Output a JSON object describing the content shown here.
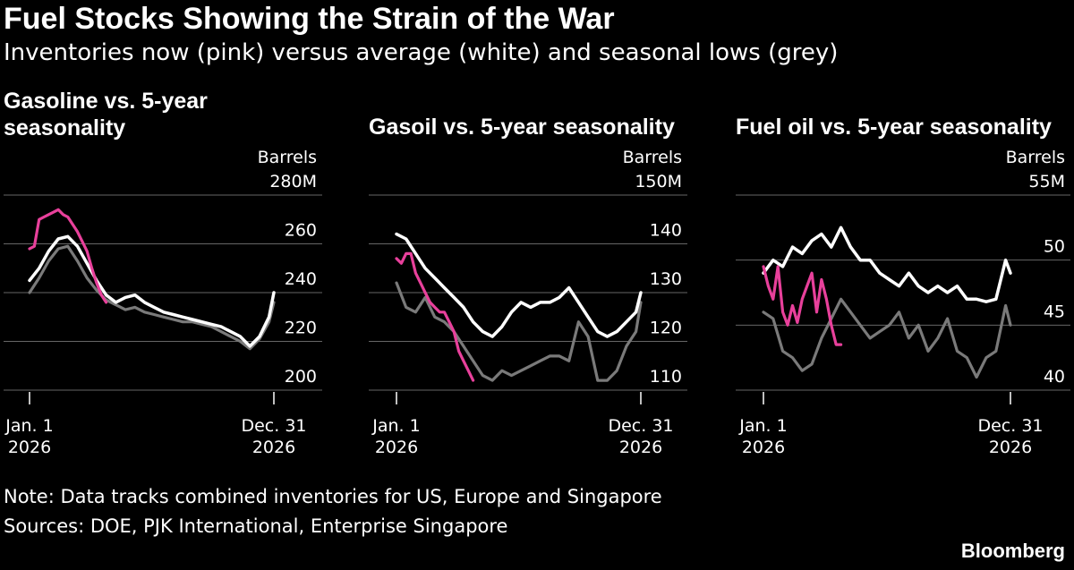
{
  "header": {
    "title": "Fuel Stocks Showing the Strain of the War",
    "subtitle": "Inventories now (pink) versus average (white) and seasonal lows (grey)"
  },
  "footer": {
    "note": "Note: Data tracks combined inventories for US, Europe and Singapore",
    "sources": "Sources: DOE, PJK International, Enterprise Singapore",
    "brand": "Bloomberg"
  },
  "colors": {
    "now": "#e8409b",
    "average": "#ffffff",
    "low": "#7a7a7a",
    "grid": "#666666",
    "background": "#000000"
  },
  "chart_data": [
    {
      "type": "line",
      "title": "Gasoline vs. 5-year seasonality",
      "ylabel": "Barrels",
      "ylim": [
        200,
        280
      ],
      "yticks": [
        200,
        220,
        240,
        260,
        280
      ],
      "ytick_labels": [
        "200",
        "220",
        "240",
        "260",
        "280M"
      ],
      "xlim": [
        1,
        52
      ],
      "xtick_labels": [
        [
          "Jan. 1",
          "2026"
        ],
        [
          "Dec. 31",
          "2026"
        ]
      ],
      "x_unit": "week of year",
      "series": [
        {
          "role": "now",
          "x": [
            1,
            2,
            3,
            4,
            5,
            6,
            7,
            8,
            9,
            10,
            11,
            12,
            13,
            14,
            15,
            16,
            17
          ],
          "values": [
            258,
            259,
            270,
            271,
            272,
            273,
            274,
            272,
            271,
            268,
            265,
            261,
            257,
            250,
            244,
            239,
            236
          ]
        },
        {
          "role": "average",
          "x": [
            1,
            3,
            5,
            7,
            9,
            11,
            13,
            15,
            17,
            19,
            21,
            23,
            25,
            27,
            29,
            31,
            33,
            35,
            37,
            39,
            41,
            43,
            45,
            47,
            49,
            51,
            52
          ],
          "values": [
            245,
            250,
            257,
            262,
            263,
            259,
            252,
            245,
            239,
            236,
            238,
            239,
            236,
            234,
            232,
            231,
            230,
            229,
            228,
            227,
            226,
            224,
            222,
            218,
            222,
            230,
            240
          ]
        },
        {
          "role": "low",
          "x": [
            1,
            3,
            5,
            7,
            9,
            11,
            13,
            15,
            17,
            19,
            21,
            23,
            25,
            27,
            29,
            31,
            33,
            35,
            37,
            39,
            41,
            43,
            45,
            47,
            49,
            51,
            52
          ],
          "values": [
            240,
            246,
            253,
            258,
            259,
            253,
            246,
            241,
            237,
            235,
            233,
            234,
            232,
            231,
            230,
            229,
            228,
            228,
            227,
            226,
            224,
            222,
            220,
            217,
            221,
            228,
            236
          ]
        }
      ]
    },
    {
      "type": "line",
      "title": "Gasoil vs. 5-year seasonality",
      "ylabel": "Barrels",
      "ylim": [
        110,
        150
      ],
      "yticks": [
        110,
        120,
        130,
        140,
        150
      ],
      "ytick_labels": [
        "110",
        "120",
        "130",
        "140",
        "150M"
      ],
      "xlim": [
        1,
        52
      ],
      "xtick_labels": [
        [
          "Jan. 1",
          "2026"
        ],
        [
          "Dec. 31",
          "2026"
        ]
      ],
      "x_unit": "week of year",
      "series": [
        {
          "role": "now",
          "x": [
            1,
            2,
            3,
            4,
            5,
            6,
            7,
            8,
            9,
            10,
            11,
            12,
            13,
            14,
            15,
            16,
            17
          ],
          "values": [
            137,
            136,
            138,
            138,
            134,
            132,
            130,
            128,
            127,
            126,
            126,
            124,
            122,
            118,
            116,
            114,
            112
          ]
        },
        {
          "role": "average",
          "x": [
            1,
            3,
            5,
            7,
            9,
            11,
            13,
            15,
            17,
            19,
            21,
            23,
            25,
            27,
            29,
            31,
            33,
            35,
            37,
            39,
            41,
            43,
            45,
            47,
            49,
            51,
            52
          ],
          "values": [
            142,
            141,
            138,
            135,
            133,
            131,
            129,
            127,
            124,
            122,
            121,
            123,
            126,
            128,
            127,
            128,
            128,
            129,
            131,
            128,
            125,
            122,
            121,
            122,
            124,
            126,
            130
          ]
        },
        {
          "role": "low",
          "x": [
            1,
            3,
            5,
            7,
            9,
            11,
            13,
            15,
            17,
            19,
            21,
            23,
            25,
            27,
            29,
            31,
            33,
            35,
            37,
            39,
            41,
            43,
            45,
            47,
            49,
            51,
            52
          ],
          "values": [
            132,
            127,
            126,
            129,
            125,
            124,
            122,
            119,
            116,
            113,
            112,
            114,
            113,
            114,
            115,
            116,
            117,
            117,
            116,
            124,
            121,
            112,
            112,
            114,
            119,
            122,
            128
          ]
        }
      ]
    },
    {
      "type": "line",
      "title": "Fuel oil vs. 5-year seasonality",
      "ylabel": "Barrels",
      "ylim": [
        40,
        55
      ],
      "yticks": [
        40,
        45,
        50,
        55
      ],
      "ytick_labels": [
        "40",
        "45",
        "50",
        "55M"
      ],
      "xlim": [
        1,
        52
      ],
      "xtick_labels": [
        [
          "Jan. 1",
          "2026"
        ],
        [
          "Dec. 31",
          "2026"
        ]
      ],
      "x_unit": "week of year",
      "series": [
        {
          "role": "now",
          "x": [
            1,
            2,
            3,
            4,
            5,
            6,
            7,
            8,
            9,
            10,
            11,
            12,
            13,
            14,
            15,
            16,
            17
          ],
          "values": [
            49.5,
            48.0,
            47.0,
            49.5,
            46.0,
            45.0,
            46.5,
            45.2,
            47.0,
            48.0,
            49.0,
            46.0,
            48.5,
            47.0,
            45.0,
            43.5,
            43.5
          ]
        },
        {
          "role": "average",
          "x": [
            1,
            3,
            5,
            7,
            9,
            11,
            13,
            15,
            17,
            19,
            21,
            23,
            25,
            27,
            29,
            31,
            33,
            35,
            37,
            39,
            41,
            43,
            45,
            47,
            49,
            51,
            52
          ],
          "values": [
            49,
            50,
            49.5,
            51,
            50.5,
            51.5,
            52,
            51,
            52.5,
            51,
            50,
            50,
            49,
            48.5,
            48,
            49,
            48,
            47.5,
            48,
            47.5,
            48,
            47,
            47,
            46.8,
            47,
            50,
            49
          ]
        },
        {
          "role": "low",
          "x": [
            1,
            3,
            5,
            7,
            9,
            11,
            13,
            15,
            17,
            19,
            21,
            23,
            25,
            27,
            29,
            31,
            33,
            35,
            37,
            39,
            41,
            43,
            45,
            47,
            49,
            51,
            52
          ],
          "values": [
            46,
            45.5,
            43,
            42.5,
            41.5,
            42,
            44,
            45.5,
            47,
            46,
            45,
            44,
            44.5,
            45,
            46,
            44,
            45,
            43,
            44,
            45.5,
            43,
            42.5,
            41,
            42.5,
            43,
            46.5,
            45
          ]
        }
      ]
    }
  ]
}
